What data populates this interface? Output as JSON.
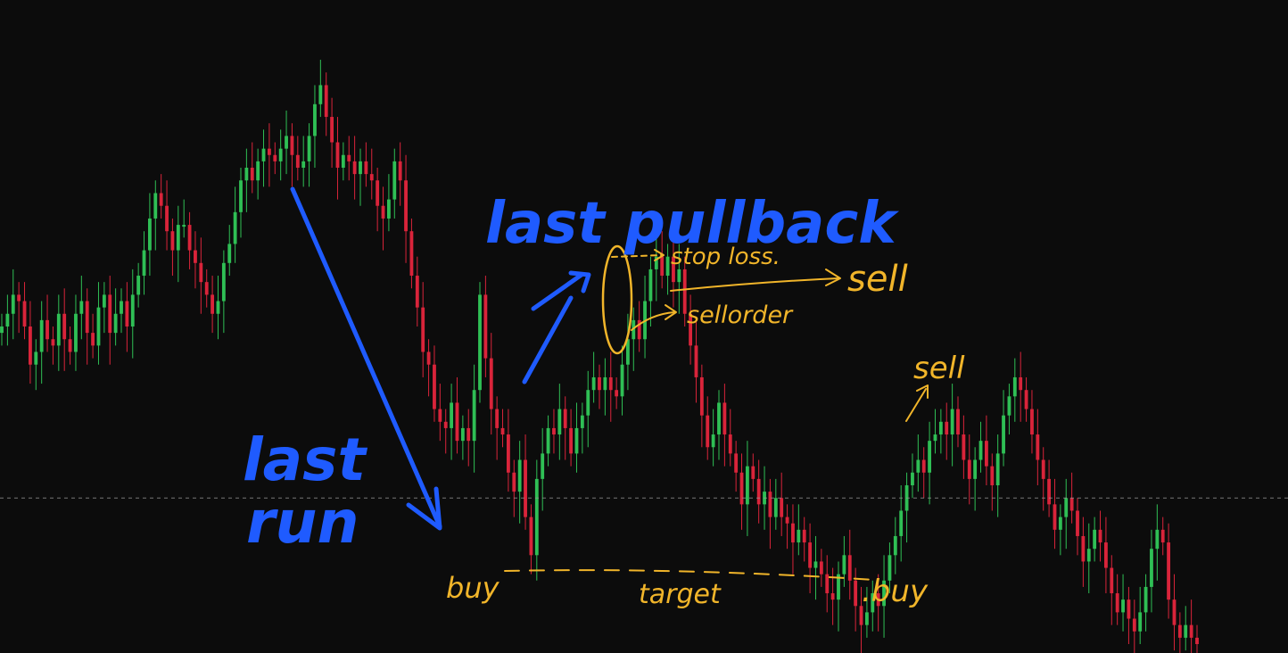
{
  "chart_data": {
    "type": "candlestick",
    "title": "",
    "xlabel": "",
    "ylabel": "",
    "axes_visible": false,
    "grid": false,
    "ylim": [
      0,
      100
    ],
    "reference_line": {
      "y": 23,
      "style": "dashed",
      "color": "#9a9a9a"
    },
    "colors": {
      "up": "#2fbf55",
      "down": "#d9243a",
      "background": "#0c0c0c"
    },
    "candles": [
      [
        49,
        50,
        45,
        44
      ],
      [
        50,
        52,
        49,
        48
      ],
      [
        52,
        55,
        52,
        51
      ],
      [
        55,
        54,
        50,
        49
      ],
      [
        54,
        50,
        47,
        45
      ],
      [
        50,
        44,
        40,
        39
      ],
      [
        44,
        46,
        41,
        40
      ],
      [
        46,
        51,
        47,
        44
      ],
      [
        51,
        48,
        48,
        46
      ],
      [
        48,
        47,
        44,
        42
      ],
      [
        47,
        52,
        49,
        46
      ],
      [
        52,
        48,
        48,
        46
      ],
      [
        48,
        46,
        44,
        44
      ],
      [
        46,
        52,
        51,
        46
      ],
      [
        52,
        54,
        51,
        48
      ],
      [
        54,
        49,
        49,
        44
      ],
      [
        49,
        47,
        45,
        43
      ],
      [
        47,
        53,
        51,
        46
      ],
      [
        53,
        55,
        53,
        51
      ],
      [
        55,
        49,
        46,
        43
      ],
      [
        49,
        52,
        50,
        48
      ],
      [
        52,
        54,
        52,
        52
      ],
      [
        54,
        50,
        48,
        48
      ],
      [
        50,
        55,
        52,
        51
      ],
      [
        55,
        58,
        55,
        53
      ],
      [
        58,
        62,
        61,
        57
      ],
      [
        62,
        67,
        64,
        60
      ],
      [
        67,
        71,
        69,
        65
      ],
      [
        71,
        69,
        66,
        65
      ],
      [
        69,
        65,
        63,
        63
      ],
      [
        65,
        62,
        62,
        59
      ],
      [
        62,
        66,
        64,
        60
      ],
      [
        66,
        66,
        64,
        62
      ],
      [
        66,
        62,
        59,
        57
      ],
      [
        62,
        60,
        55,
        55
      ],
      [
        60,
        57,
        53,
        53
      ],
      [
        57,
        55,
        54,
        52
      ],
      [
        55,
        52,
        49,
        48
      ],
      [
        52,
        54,
        50,
        49
      ],
      [
        54,
        60,
        57,
        52
      ],
      [
        60,
        63,
        60,
        58
      ],
      [
        63,
        68,
        66,
        61
      ],
      [
        68,
        73,
        70,
        66
      ],
      [
        73,
        75,
        72,
        71
      ],
      [
        75,
        73,
        73,
        69
      ],
      [
        73,
        76,
        74,
        72
      ],
      [
        76,
        78,
        76,
        75
      ],
      [
        78,
        77,
        76,
        75
      ],
      [
        77,
        76,
        74,
        74
      ],
      [
        76,
        78,
        76,
        74
      ],
      [
        78,
        80,
        78,
        75
      ],
      [
        80,
        77,
        75,
        75
      ],
      [
        77,
        75,
        74,
        73
      ],
      [
        75,
        76,
        76,
        73
      ],
      [
        76,
        80,
        79,
        74
      ],
      [
        80,
        85,
        83,
        79
      ],
      [
        85,
        88,
        83,
        83
      ],
      [
        88,
        83,
        80,
        80
      ],
      [
        83,
        79,
        76,
        75
      ],
      [
        79,
        75,
        73,
        72
      ],
      [
        75,
        77,
        75,
        75
      ],
      [
        77,
        76,
        72,
        72
      ],
      [
        76,
        74,
        72,
        70
      ],
      [
        74,
        76,
        72,
        71
      ],
      [
        76,
        74,
        73,
        70
      ],
      [
        74,
        73,
        71,
        71
      ],
      [
        73,
        69,
        67,
        66
      ],
      [
        69,
        67,
        65,
        65
      ],
      [
        67,
        70,
        69,
        65
      ],
      [
        70,
        76,
        72,
        69
      ],
      [
        76,
        73,
        72,
        70
      ],
      [
        73,
        65,
        62,
        61
      ],
      [
        65,
        58,
        55,
        53
      ],
      [
        58,
        53,
        50,
        49
      ],
      [
        53,
        46,
        44,
        43
      ],
      [
        46,
        44,
        41,
        40
      ],
      [
        44,
        37,
        35,
        34
      ],
      [
        37,
        35,
        33,
        32
      ],
      [
        35,
        34,
        32,
        31
      ],
      [
        34,
        38,
        36,
        33
      ],
      [
        38,
        32,
        30,
        29
      ],
      [
        32,
        34,
        31,
        30
      ],
      [
        34,
        32,
        32,
        29
      ],
      [
        32,
        40,
        37,
        31
      ],
      [
        40,
        55,
        53,
        39
      ],
      [
        55,
        45,
        43,
        42
      ],
      [
        45,
        37,
        35,
        35
      ],
      [
        37,
        34,
        31,
        31
      ],
      [
        34,
        33,
        30,
        29
      ],
      [
        33,
        27,
        24,
        24
      ],
      [
        27,
        24,
        21,
        20
      ],
      [
        24,
        29,
        25,
        23
      ],
      [
        29,
        20,
        18,
        15
      ],
      [
        20,
        14,
        14,
        13
      ],
      [
        14,
        26,
        22,
        13
      ],
      [
        26,
        30,
        26,
        24
      ],
      [
        30,
        34,
        32,
        29
      ],
      [
        34,
        33,
        31,
        29
      ],
      [
        33,
        37,
        35,
        31
      ],
      [
        37,
        34,
        31,
        30
      ],
      [
        34,
        30,
        26,
        27
      ],
      [
        30,
        34,
        31,
        30
      ],
      [
        34,
        36,
        36,
        32
      ],
      [
        36,
        40,
        38,
        35
      ],
      [
        40,
        42,
        39,
        38
      ],
      [
        42,
        40,
        40,
        37
      ],
      [
        40,
        42,
        41,
        38
      ],
      [
        42,
        40,
        38,
        36
      ],
      [
        40,
        39,
        38,
        37
      ],
      [
        39,
        44,
        41,
        37
      ],
      [
        44,
        48,
        46,
        42
      ],
      [
        48,
        51,
        50,
        46
      ],
      [
        51,
        48,
        47,
        47
      ],
      [
        48,
        54,
        50,
        46
      ],
      [
        54,
        59,
        56,
        52
      ],
      [
        59,
        61,
        58,
        56
      ],
      [
        61,
        58,
        55,
        55
      ],
      [
        58,
        61,
        60,
        55
      ],
      [
        61,
        57,
        53,
        52
      ],
      [
        57,
        59,
        57,
        55
      ],
      [
        59,
        52,
        49,
        49
      ],
      [
        52,
        47,
        44,
        44
      ],
      [
        47,
        42,
        39,
        39
      ],
      [
        42,
        36,
        33,
        33
      ],
      [
        36,
        31,
        27,
        27
      ],
      [
        31,
        33,
        31,
        29
      ],
      [
        33,
        38,
        35,
        31
      ],
      [
        38,
        33,
        31,
        30
      ],
      [
        33,
        30,
        27,
        27
      ],
      [
        30,
        27,
        26,
        24
      ],
      [
        27,
        22,
        20,
        17
      ],
      [
        22,
        28,
        26,
        21
      ],
      [
        28,
        26,
        24,
        24
      ],
      [
        26,
        22,
        22,
        20
      ],
      [
        22,
        24,
        21,
        20
      ],
      [
        24,
        20,
        20,
        18
      ],
      [
        20,
        23,
        21,
        18
      ],
      [
        23,
        20,
        18,
        17
      ],
      [
        20,
        19,
        16,
        16
      ],
      [
        19,
        16,
        15,
        13
      ],
      [
        16,
        18,
        16,
        14
      ],
      [
        18,
        16,
        13,
        12
      ],
      [
        16,
        12,
        10,
        10
      ],
      [
        12,
        13,
        11,
        10
      ],
      [
        13,
        11,
        8,
        8
      ],
      [
        11,
        8,
        5,
        5
      ],
      [
        8,
        7,
        4,
        4
      ],
      [
        7,
        11,
        9,
        5
      ],
      [
        11,
        14,
        12,
        9
      ],
      [
        14,
        10,
        9,
        7
      ],
      [
        10,
        6,
        3,
        3
      ],
      [
        6,
        3,
        0,
        0
      ],
      [
        3,
        5,
        1,
        1
      ],
      [
        5,
        8,
        6,
        3
      ],
      [
        8,
        6,
        5,
        4
      ],
      [
        6,
        10,
        8,
        4
      ],
      [
        10,
        14,
        12,
        8
      ],
      [
        14,
        17,
        15,
        13
      ],
      [
        17,
        21,
        19,
        16
      ],
      [
        21,
        25,
        23,
        19
      ],
      [
        25,
        27,
        25,
        23
      ],
      [
        27,
        29,
        27,
        25
      ],
      [
        29,
        27,
        26,
        25
      ],
      [
        27,
        32,
        30,
        25
      ],
      [
        32,
        33,
        31,
        31
      ],
      [
        33,
        35,
        33,
        31
      ],
      [
        35,
        33,
        32,
        31
      ],
      [
        33,
        37,
        35,
        31
      ],
      [
        37,
        33,
        33,
        31
      ],
      [
        33,
        29,
        27,
        26
      ],
      [
        29,
        26,
        25,
        24
      ],
      [
        26,
        29,
        27,
        24
      ],
      [
        29,
        32,
        30,
        27
      ],
      [
        32,
        28,
        27,
        27
      ],
      [
        28,
        25,
        24,
        22
      ],
      [
        25,
        30,
        27,
        23
      ],
      [
        30,
        36,
        33,
        29
      ],
      [
        36,
        39,
        37,
        35
      ],
      [
        39,
        42,
        40,
        38
      ],
      [
        42,
        40,
        38,
        38
      ],
      [
        40,
        37,
        35,
        35
      ],
      [
        37,
        33,
        31,
        31
      ],
      [
        33,
        29,
        27,
        27
      ],
      [
        29,
        26,
        23,
        23
      ],
      [
        26,
        22,
        20,
        20
      ],
      [
        22,
        18,
        16,
        16
      ],
      [
        18,
        20,
        18,
        16
      ],
      [
        20,
        23,
        21,
        18
      ],
      [
        23,
        21,
        19,
        19
      ],
      [
        21,
        17,
        15,
        14
      ],
      [
        17,
        13,
        11,
        11
      ],
      [
        13,
        15,
        13,
        11
      ],
      [
        15,
        18,
        16,
        13
      ],
      [
        18,
        16,
        14,
        13
      ],
      [
        16,
        12,
        9,
        9
      ],
      [
        12,
        8,
        7,
        5
      ],
      [
        8,
        5,
        3,
        3
      ],
      [
        5,
        7,
        5,
        3
      ],
      [
        7,
        4,
        3,
        2
      ],
      [
        4,
        2,
        1,
        1
      ],
      [
        2,
        5,
        3,
        1
      ],
      [
        5,
        9,
        7,
        3
      ],
      [
        9,
        15,
        13,
        8
      ],
      [
        15,
        18,
        16,
        13
      ],
      [
        18,
        16,
        12,
        10
      ],
      [
        16,
        7,
        5,
        4
      ],
      [
        7,
        3,
        1,
        1
      ],
      [
        3,
        1,
        0,
        0
      ],
      [
        1,
        3,
        2,
        0
      ],
      [
        3,
        1,
        0,
        0
      ],
      [
        1,
        0,
        0,
        0
      ]
    ]
  },
  "annotations": {
    "last_pullback": "last pullback",
    "last_run_line1": "last",
    "last_run_line2": "run",
    "stop_loss": "stop loss.",
    "sell_right": "sell",
    "sell_order": "sellorder",
    "sell_mid": "sell",
    "buy_left": "buy",
    "target": "target",
    "buy_right": ".buy"
  }
}
